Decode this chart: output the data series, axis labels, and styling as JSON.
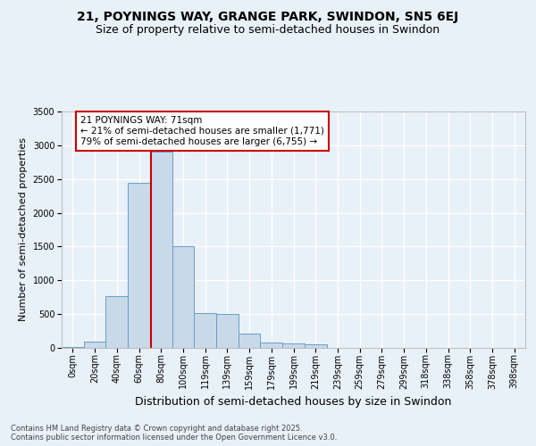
{
  "title1": "21, POYNINGS WAY, GRANGE PARK, SWINDON, SN5 6EJ",
  "title2": "Size of property relative to semi-detached houses in Swindon",
  "xlabel": "Distribution of semi-detached houses by size in Swindon",
  "ylabel": "Number of semi-detached properties",
  "categories": [
    "0sqm",
    "20sqm",
    "40sqm",
    "60sqm",
    "80sqm",
    "100sqm",
    "119sqm",
    "139sqm",
    "159sqm",
    "179sqm",
    "199sqm",
    "219sqm",
    "239sqm",
    "259sqm",
    "279sqm",
    "299sqm",
    "318sqm",
    "338sqm",
    "358sqm",
    "378sqm",
    "398sqm"
  ],
  "bar_values": [
    15,
    95,
    760,
    2450,
    2900,
    1500,
    510,
    500,
    210,
    75,
    60,
    50,
    0,
    0,
    0,
    0,
    0,
    0,
    0,
    0,
    0
  ],
  "bar_color": "#c8d9ea",
  "bar_edge_color": "#6a9ec5",
  "vline_color": "#cc0000",
  "vline_pos": 3.55,
  "annotation_text": "21 POYNINGS WAY: 71sqm\n← 21% of semi-detached houses are smaller (1,771)\n79% of semi-detached houses are larger (6,755) →",
  "annotation_box_facecolor": "#ffffff",
  "annotation_box_edgecolor": "#cc0000",
  "ylim": [
    0,
    3500
  ],
  "yticks": [
    0,
    500,
    1000,
    1500,
    2000,
    2500,
    3000,
    3500
  ],
  "footer": "Contains HM Land Registry data © Crown copyright and database right 2025.\nContains public sector information licensed under the Open Government Licence v3.0.",
  "bg_color": "#e8f0f8",
  "plot_bg_color": "#e8f0f8",
  "grid_color": "#ffffff",
  "title_fontsize": 10,
  "subtitle_fontsize": 9,
  "ylabel_fontsize": 8,
  "xlabel_fontsize": 9,
  "tick_fontsize": 7,
  "annot_fontsize": 7.5,
  "footer_fontsize": 6
}
